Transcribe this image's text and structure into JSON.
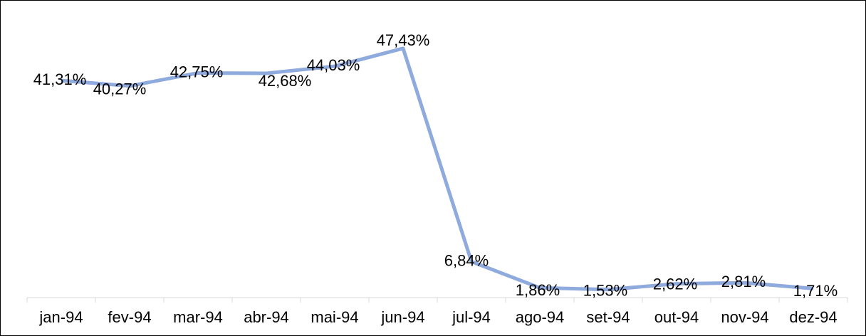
{
  "chart_data": {
    "type": "line",
    "categories": [
      "jan-94",
      "fev-94",
      "mar-94",
      "abr-94",
      "mai-94",
      "jun-94",
      "jul-94",
      "ago-94",
      "set-94",
      "out-94",
      "nov-94",
      "dez-94"
    ],
    "series": [
      {
        "color": "#8faadc",
        "values": [
          41.31,
          40.27,
          42.75,
          42.68,
          44.03,
          47.43,
          6.84,
          1.86,
          1.53,
          2.62,
          2.81,
          1.71
        ],
        "value_labels": [
          "41,31%",
          "40,27%",
          "42,75%",
          "42,68%",
          "44,03%",
          "47,43%",
          "6,84%",
          "1,86%",
          "1,53%",
          "2,62%",
          "2,81%",
          "1,71%"
        ]
      }
    ],
    "ylim": [
      0,
      50
    ]
  }
}
